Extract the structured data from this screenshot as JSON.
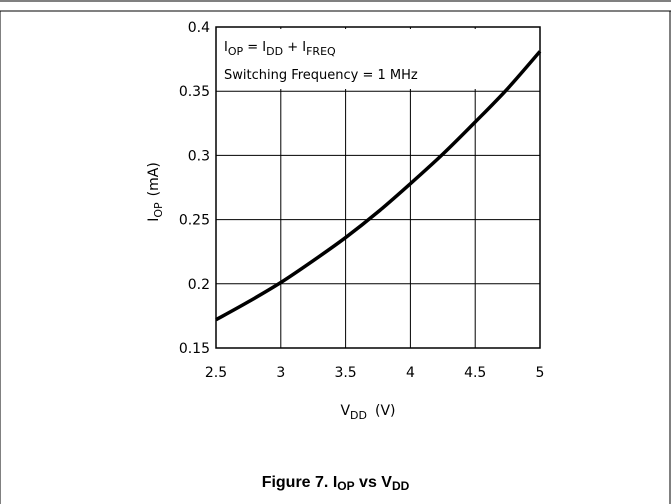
{
  "chart_data": {
    "type": "line",
    "x": [
      2.5,
      2.75,
      3.0,
      3.25,
      3.5,
      3.75,
      4.0,
      4.25,
      4.5,
      4.75,
      5.0
    ],
    "series": [
      {
        "values": [
          0.172,
          0.186,
          0.201,
          0.218,
          0.236,
          0.256,
          0.278,
          0.301,
          0.326,
          0.352,
          0.381
        ]
      }
    ],
    "xlim": [
      2.5,
      5
    ],
    "ylim": [
      0.15,
      0.4
    ],
    "xticks": [
      "2.5",
      "3",
      "3.5",
      "4",
      "4.5",
      "5"
    ],
    "yticks": [
      "0.4",
      "0.35",
      "0.3",
      "0.25",
      "0.2",
      "0.15"
    ],
    "xlabel": {
      "main": "V",
      "sub": "DD",
      "unit": "(V)"
    },
    "ylabel": {
      "main": "I",
      "sub": "OP",
      "unit": "(mA)"
    },
    "annotation_line1": {
      "i1": "I",
      "s1": "OP",
      "eq": " = I",
      "s2": "DD",
      "plus": " + I",
      "s3": "FREQ"
    },
    "annotation_line2": "Switching Frequency = 1 MHz",
    "grid": true,
    "line_color": "#000000"
  },
  "caption": {
    "prefix": "Figure 7. I",
    "sub1": "OP",
    "mid": " vs V",
    "sub2": "DD"
  }
}
